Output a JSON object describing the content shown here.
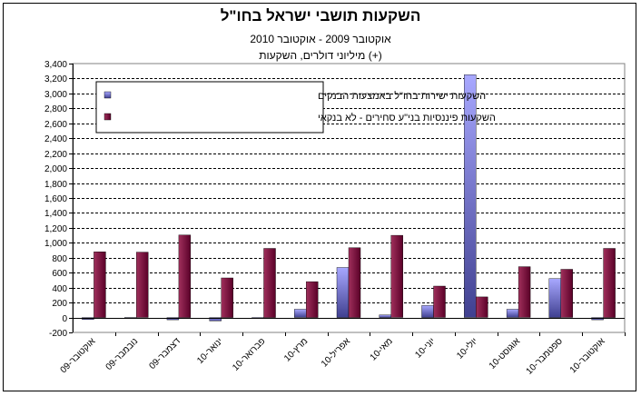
{
  "chart_data": {
    "type": "bar",
    "title": "השקעות תושבי ישראל בחו\"ל",
    "subtitle": "אוקטובר 2009 - אוקטובר 2010",
    "subtitle2": "מיליוני דולרים, השקעות (+)",
    "categories": [
      "אוקטובר-09",
      "נובמבר-09",
      "דצמבר-09",
      "ינואר-10",
      "פברואר-10",
      "מרץ-10",
      "אפריל-10",
      "מאי-10",
      "יוני-10",
      "יולי-10",
      "אוגוסט-10",
      "ספטמבר-10",
      "אוקטובר-10"
    ],
    "series": [
      {
        "name": "השקעות ישירות בחו\"ל באמצעות הבנקים",
        "color": "#8080e0",
        "values": [
          -25,
          -5,
          -30,
          -45,
          -15,
          110,
          670,
          35,
          160,
          3250,
          110,
          520,
          -30
        ]
      },
      {
        "name": "השקעות פיננסיות בני\"ע סחירים - לא בנקאי",
        "color": "#800040",
        "values": [
          880,
          875,
          1105,
          530,
          925,
          480,
          935,
          1100,
          420,
          275,
          680,
          645,
          925
        ]
      }
    ],
    "ylim": [
      -200,
      3400
    ],
    "yticks": [
      -200,
      0,
      200,
      400,
      600,
      800,
      1000,
      1200,
      1400,
      1600,
      1800,
      2000,
      2200,
      2400,
      2600,
      2800,
      3000,
      3200,
      3400
    ],
    "ytick_labels": [
      "-200",
      "0",
      "200",
      "400",
      "600",
      "800",
      "1,000",
      "1,200",
      "1,400",
      "1,600",
      "1,800",
      "2,000",
      "2,200",
      "2,400",
      "2,600",
      "2,800",
      "3,000",
      "3,200",
      "3,400"
    ],
    "grid": true,
    "legend_position": "top-left"
  }
}
